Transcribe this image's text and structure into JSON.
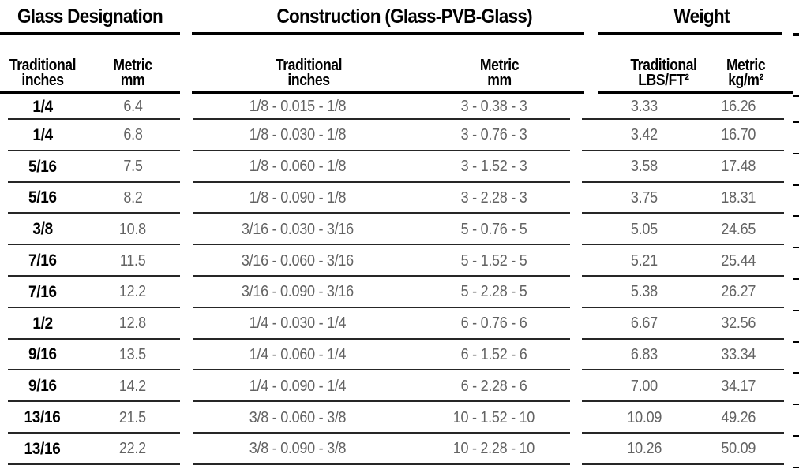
{
  "table": {
    "groups": [
      {
        "title": "Glass Designation",
        "columns": [
          {
            "line1": "Traditional",
            "line2": "inches"
          },
          {
            "line1": "Metric",
            "line2": "mm"
          }
        ]
      },
      {
        "title": "Construction (Glass-PVB-Glass)",
        "columns": [
          {
            "line1": "Traditional",
            "line2": "inches"
          },
          {
            "line1": "Metric",
            "line2": "mm"
          }
        ]
      },
      {
        "title": "Weight",
        "columns": [
          {
            "line1": "Traditional",
            "line2": "LBS/FT²"
          },
          {
            "line1": "Metric",
            "line2": "kg/m²"
          }
        ]
      }
    ],
    "rows": [
      [
        "1/4",
        "6.4",
        "1/8 - 0.015 - 1/8",
        "3 - 0.38 - 3",
        "3.33",
        "16.26"
      ],
      [
        "1/4",
        "6.8",
        "1/8 - 0.030 - 1/8",
        "3 - 0.76 - 3",
        "3.42",
        "16.70"
      ],
      [
        "5/16",
        "7.5",
        "1/8 - 0.060 - 1/8",
        "3 - 1.52 - 3",
        "3.58",
        "17.48"
      ],
      [
        "5/16",
        "8.2",
        "1/8 - 0.090 - 1/8",
        "3 - 2.28 - 3",
        "3.75",
        "18.31"
      ],
      [
        "3/8",
        "10.8",
        "3/16 - 0.030 - 3/16",
        "5 - 0.76 - 5",
        "5.05",
        "24.65"
      ],
      [
        "7/16",
        "11.5",
        "3/16 - 0.060 - 3/16",
        "5 - 1.52 - 5",
        "5.21",
        "25.44"
      ],
      [
        "7/16",
        "12.2",
        "3/16 - 0.090 - 3/16",
        "5 - 2.28 - 5",
        "5.38",
        "26.27"
      ],
      [
        "1/2",
        "12.8",
        "1/4 - 0.030 - 1/4",
        "6 - 0.76 - 6",
        "6.67",
        "32.56"
      ],
      [
        "9/16",
        "13.5",
        "1/4 - 0.060 - 1/4",
        "6 - 1.52 - 6",
        "6.83",
        "33.34"
      ],
      [
        "9/16",
        "14.2",
        "1/4 - 0.090 - 1/4",
        "6 - 2.28 - 6",
        "7.00",
        "34.17"
      ],
      [
        "13/16",
        "21.5",
        "3/8 - 0.060 - 3/8",
        "10 - 1.52 - 10",
        "10.09",
        "49.26"
      ],
      [
        "13/16",
        "22.2",
        "3/8 - 0.090 - 3/8",
        "10 - 2.28 - 10",
        "10.26",
        "50.09"
      ]
    ],
    "colors": {
      "header_text": "#000000",
      "data_text": "#636363",
      "rule": "#000000",
      "row_line": "#262626"
    }
  }
}
